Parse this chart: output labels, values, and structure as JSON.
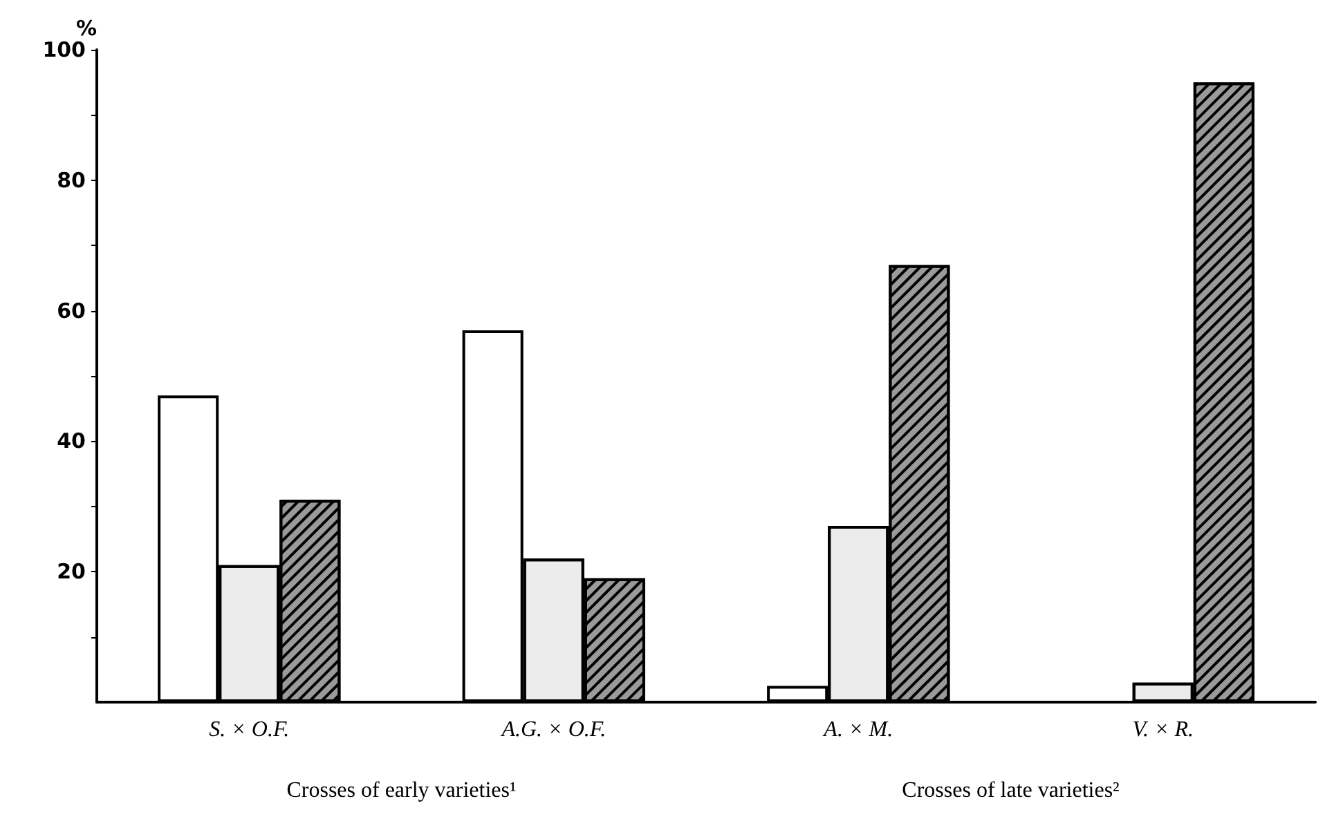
{
  "chart_data": {
    "type": "bar",
    "ylabel": "%",
    "categories": [
      "S. × O.F.",
      "A.G. × O.F.",
      "A. × M.",
      "V. × R."
    ],
    "series": [
      {
        "color": "#ffffff",
        "values": [
          47,
          57,
          2.5,
          null
        ]
      },
      {
        "color": "#ececec",
        "values": [
          21,
          22,
          27,
          3
        ]
      },
      {
        "color": "#9a9a9a",
        "values": [
          31,
          19,
          67,
          95
        ]
      }
    ],
    "ylim": [
      0,
      100
    ],
    "yticks": [
      {
        "value": 10,
        "label": null
      },
      20,
      {
        "value": 30,
        "label": null
      },
      40,
      {
        "value": 50,
        "label": null
      },
      60,
      {
        "value": 70,
        "label": null
      },
      80,
      {
        "value": 90,
        "label": null
      },
      100
    ],
    "annotations": [
      "Crosses of early varieties¹",
      "Crosses of late varieties²"
    ],
    "grid": false
  }
}
